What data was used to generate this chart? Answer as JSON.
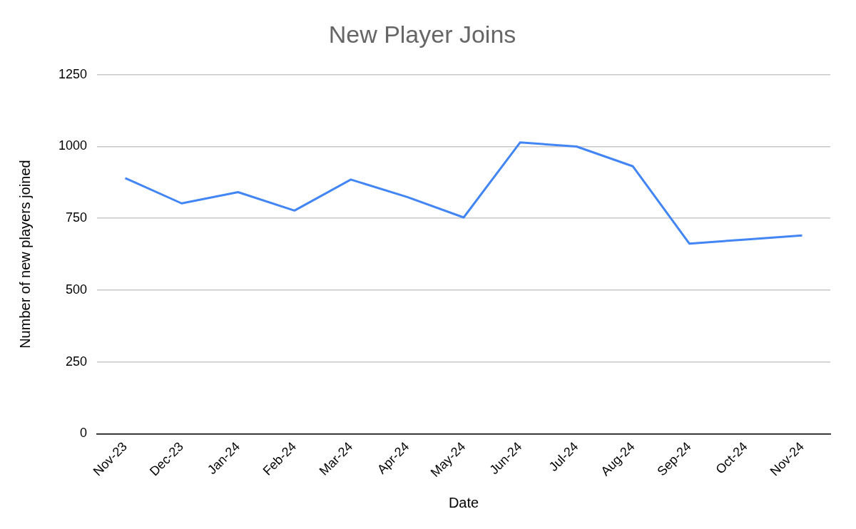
{
  "chart_data": {
    "type": "line",
    "title": "New Player Joins",
    "xlabel": "Date",
    "ylabel": "Number of new players joined",
    "categories": [
      "Nov-23",
      "Dec-23",
      "Jan-24",
      "Feb-24",
      "Mar-24",
      "Apr-24",
      "May-24",
      "Jun-24",
      "Jul-24",
      "Aug-24",
      "Sep-24",
      "Oct-24",
      "Nov-24"
    ],
    "series": [
      {
        "color": "#4285f4",
        "values": [
          890,
          802,
          841,
          777,
          885,
          824,
          753,
          1014,
          1000,
          931,
          662,
          676,
          690
        ]
      }
    ],
    "ylim": [
      0,
      1250
    ],
    "yticks": [
      0,
      250,
      500,
      750,
      1000,
      1250
    ],
    "grid": "y",
    "legend": false,
    "marker": "none",
    "line_style": "solid"
  }
}
